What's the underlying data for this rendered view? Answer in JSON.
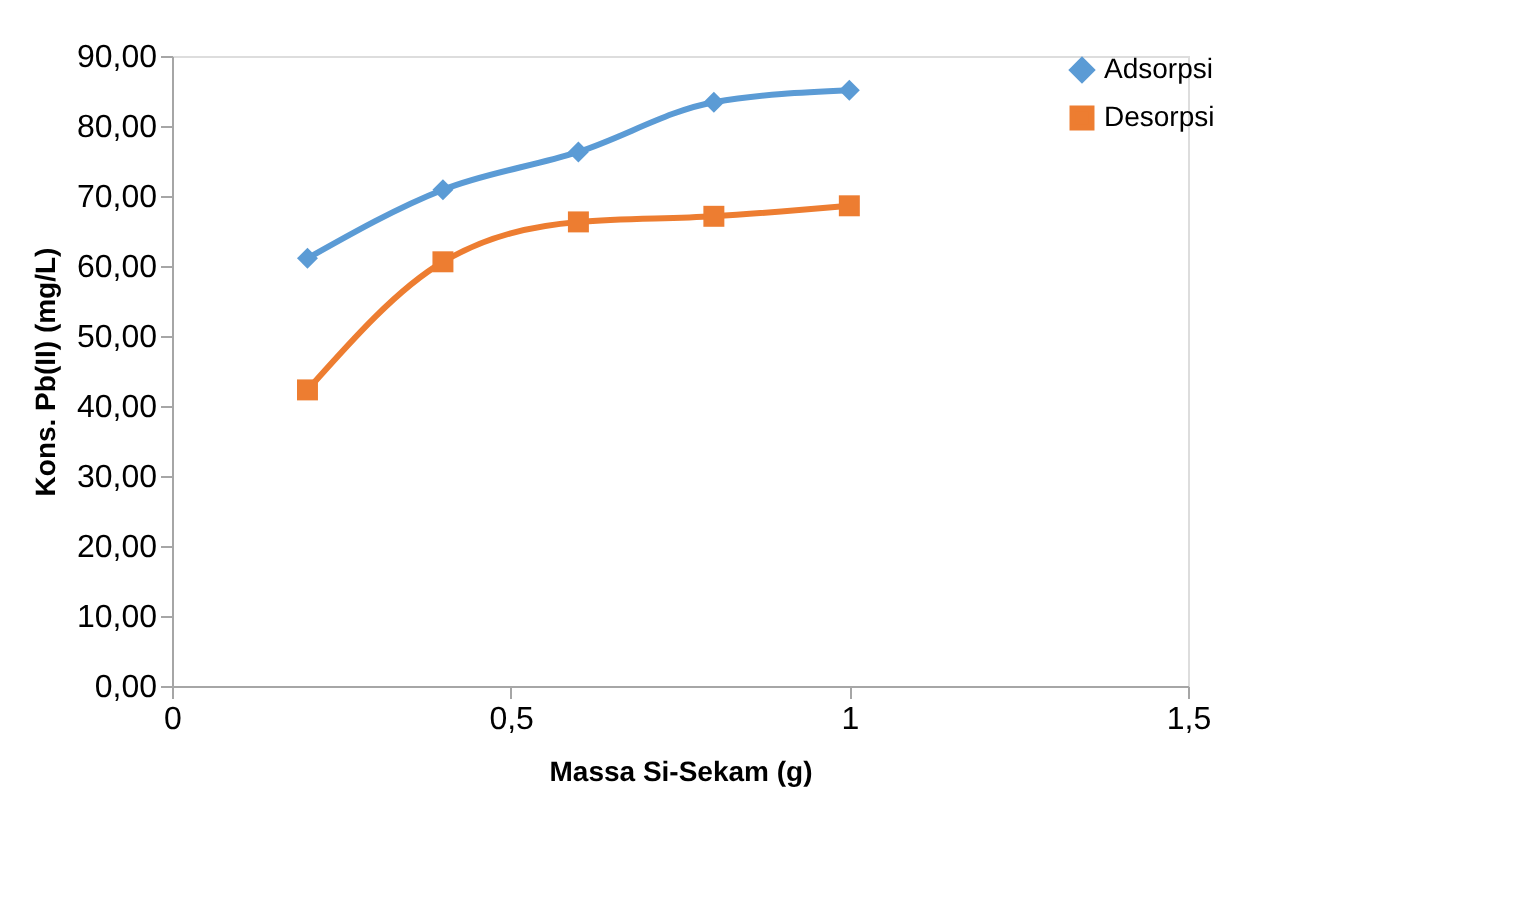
{
  "chart_data": {
    "type": "line",
    "xlabel": "Massa Si-Sekam (g)",
    "ylabel": "Kons. Pb(II) (mg/L)",
    "x": [
      0.2,
      0.4,
      0.6,
      0.8,
      1.0
    ],
    "series": [
      {
        "name": "Adsorpsi",
        "color": "#5b9bd5",
        "marker": "diamond",
        "values": [
          61.1,
          70.9,
          76.3,
          83.4,
          85.1
        ]
      },
      {
        "name": "Desorpsi",
        "color": "#ed7d31",
        "marker": "square",
        "values": [
          42.3,
          60.6,
          66.3,
          67.1,
          68.6
        ]
      }
    ],
    "xlim": [
      0,
      1.5
    ],
    "xticks": [
      0,
      {
        "value": 0.5,
        "label": "0,5"
      },
      1,
      {
        "value": 1.5,
        "label": "1,5"
      }
    ],
    "ylim": [
      0,
      90
    ],
    "yticks": [
      {
        "value": 0,
        "label": "0,00"
      },
      {
        "value": 10,
        "label": "10,00"
      },
      {
        "value": 20,
        "label": "20,00"
      },
      {
        "value": 30,
        "label": "30,00"
      },
      {
        "value": 40,
        "label": "40,00"
      },
      {
        "value": 50,
        "label": "50,00"
      },
      {
        "value": 60,
        "label": "60,00"
      },
      {
        "value": 70,
        "label": "70,00"
      },
      {
        "value": 80,
        "label": "80,00"
      },
      {
        "value": 90,
        "label": "90,00"
      }
    ],
    "grid": false,
    "legend": "right",
    "line_style": "solid"
  }
}
